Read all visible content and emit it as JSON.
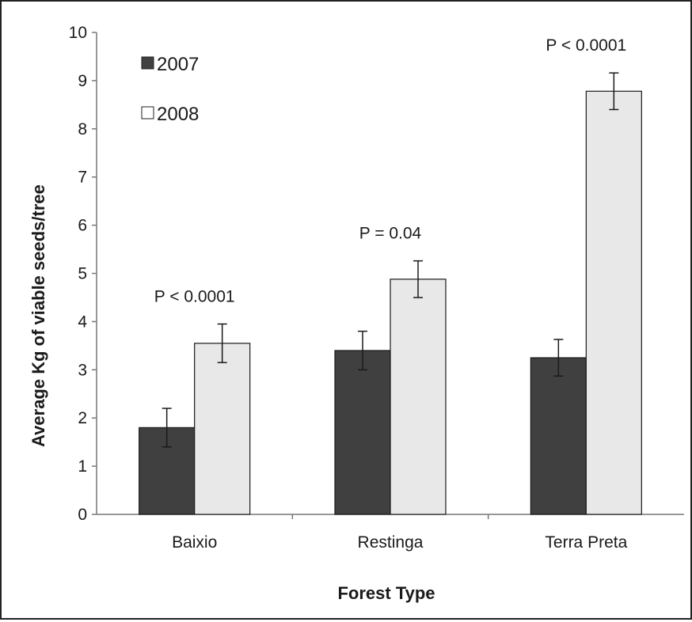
{
  "chart_data": {
    "type": "bar",
    "title": "",
    "xlabel": "Forest Type",
    "ylabel": "Average Kg of viable seeds/tree",
    "ylim": [
      0,
      10
    ],
    "yticks": [
      "0",
      "1",
      "2",
      "3",
      "4",
      "5",
      "6",
      "7",
      "8",
      "9",
      "10"
    ],
    "grid": false,
    "legend_position": "top-left",
    "categories": [
      "Baixio",
      "Restinga",
      "Terra Preta"
    ],
    "series": [
      {
        "name": "2007",
        "values": [
          1.8,
          3.4,
          3.25
        ],
        "errors": [
          0.4,
          0.4,
          0.38
        ],
        "color": "#404040"
      },
      {
        "name": "2008",
        "values": [
          3.55,
          4.88,
          8.78
        ],
        "errors": [
          0.4,
          0.38,
          0.38
        ],
        "color": "#e8e8e8"
      }
    ],
    "annotations": [
      "P < 0.0001",
      "P = 0.04",
      "P < 0.0001"
    ]
  }
}
